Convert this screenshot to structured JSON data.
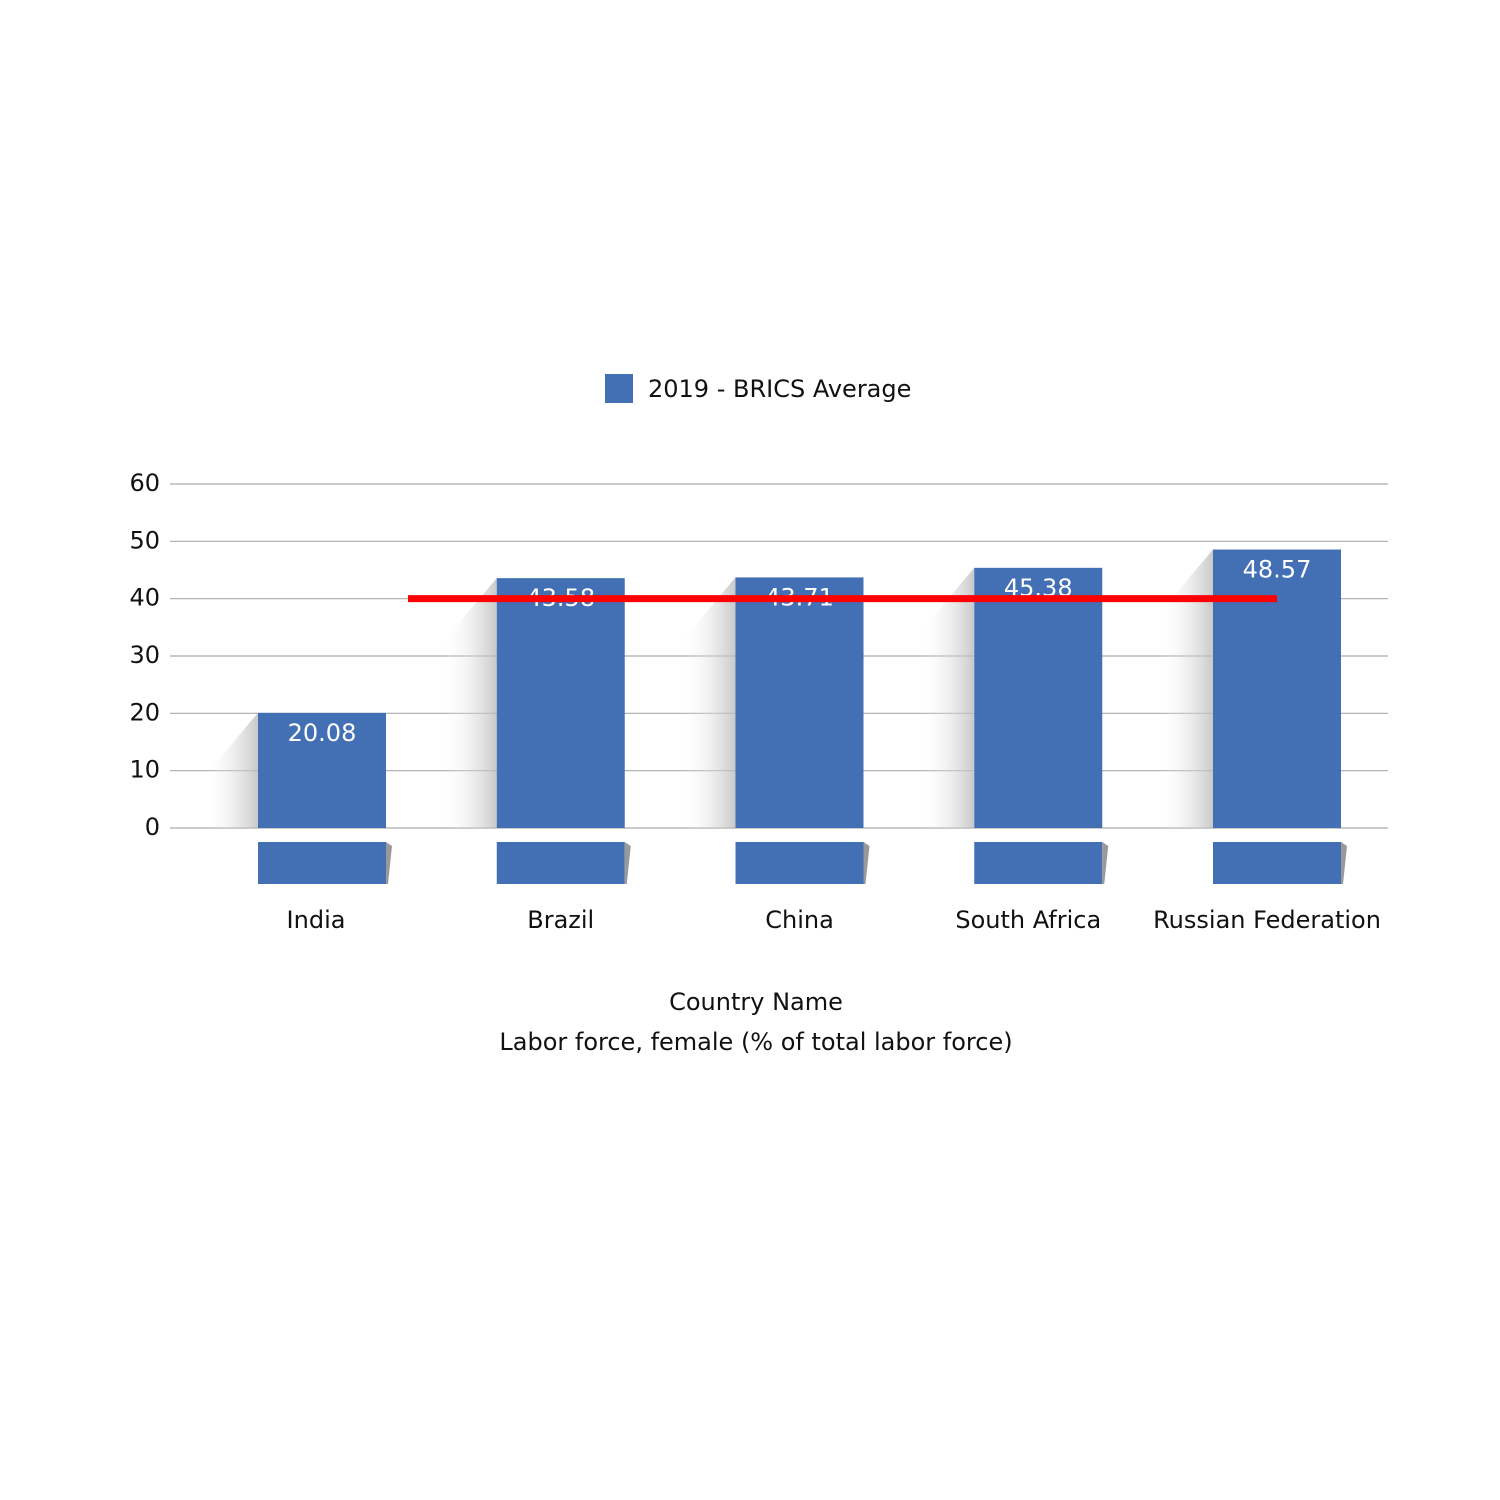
{
  "chart_data": {
    "type": "bar",
    "legend_label": "2019  -  BRICS Average",
    "categories": [
      "India",
      "Brazil",
      "China",
      "South Africa",
      "Russian Federation"
    ],
    "series": [
      {
        "name": "2019",
        "color": "#4370b5",
        "values": [
          20.08,
          43.58,
          43.71,
          45.38,
          48.57
        ]
      }
    ],
    "ylim": [
      0,
      60
    ],
    "yticks": [
      0,
      10,
      20,
      30,
      40,
      50,
      60
    ],
    "grid": true,
    "reference_line": {
      "value": 40,
      "color": "#ff0000"
    },
    "xlabel": "Country Name",
    "measure_label": "Labor force, female (% of total labor force)",
    "legend_position": "top"
  }
}
